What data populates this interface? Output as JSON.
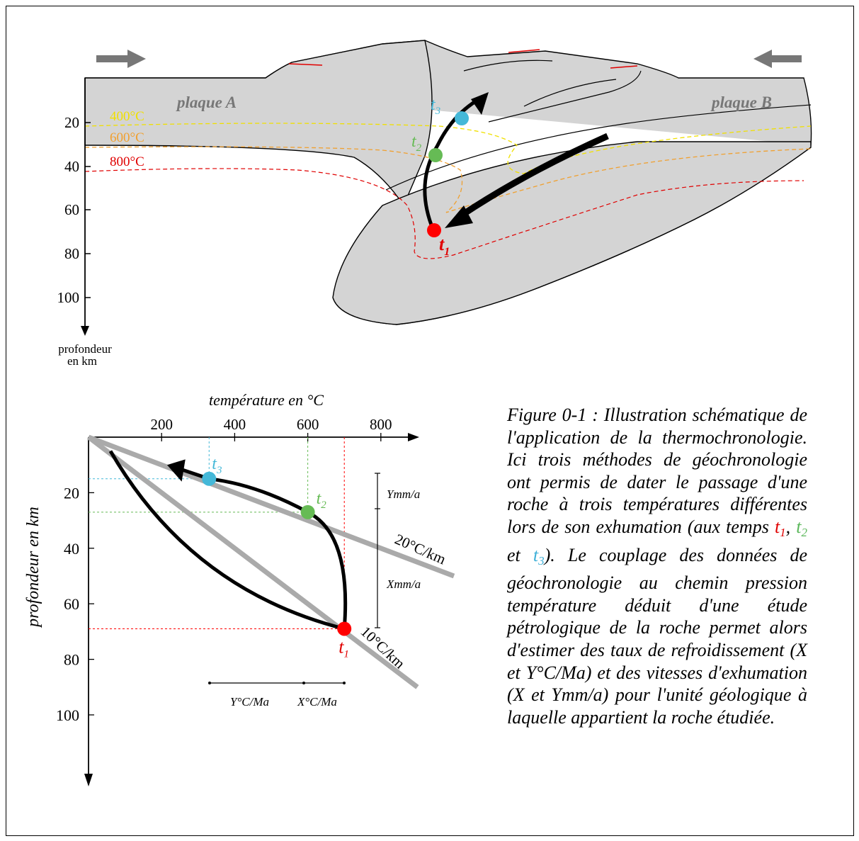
{
  "section_top": {
    "plate_a_label": "plaque A",
    "plate_b_label": "plaque B",
    "isotherms": [
      {
        "label": "400°C",
        "color": "#f0e000"
      },
      {
        "label": "600°C",
        "color": "#f0a030"
      },
      {
        "label": "800°C",
        "color": "#e00000"
      }
    ],
    "depth_ticks": [
      "20",
      "40",
      "60",
      "80",
      "100"
    ],
    "depth_axis_label_line1": "profondeur",
    "depth_axis_label_line2": "en km",
    "points": [
      {
        "t": "t",
        "sub": "1",
        "color": "#ff0000"
      },
      {
        "t": "t",
        "sub": "2",
        "color": "#66bb55"
      },
      {
        "t": "t",
        "sub": "3",
        "color": "#44b8d8"
      }
    ]
  },
  "chart": {
    "x_title": "température en °C",
    "y_title": "profondeur en km",
    "x_ticks": [
      "200",
      "400",
      "600",
      "800"
    ],
    "y_ticks": [
      "20",
      "40",
      "60",
      "80",
      "100"
    ],
    "gradient_labels": [
      "20°C/km",
      "10°C/km"
    ],
    "rate_labels": {
      "ymm": "Ymm/a",
      "xmm": "Xmm/a",
      "yc": "Y°C/Ma",
      "xc": "X°C/Ma"
    }
  },
  "chart_data": {
    "type": "scatter",
    "xlabel": "température en °C",
    "ylabel": "profondeur en km",
    "xlim": [
      0,
      900
    ],
    "ylim": [
      0,
      120
    ],
    "x_ticks": [
      200,
      400,
      600,
      800
    ],
    "y_ticks": [
      20,
      40,
      60,
      80,
      100
    ],
    "points": [
      {
        "name": "t1",
        "x": 700,
        "y": 69,
        "color": "#ff0000"
      },
      {
        "name": "t2",
        "x": 600,
        "y": 27,
        "color": "#66bb55"
      },
      {
        "name": "t3",
        "x": 330,
        "y": 15,
        "color": "#44b8d8"
      }
    ],
    "gradients": [
      {
        "label": "20°C/km",
        "x": [
          0,
          1000
        ],
        "y": [
          0,
          50
        ]
      },
      {
        "label": "10°C/km",
        "x": [
          0,
          900
        ],
        "y": [
          0,
          90
        ]
      }
    ]
  },
  "caption": {
    "figure_label": "Figure 0-1 : Illustration schématique de l'application de la thermochronologie. Ici trois méthodes de géochronologie ont permis de dater le passage d'une roche à trois températures différentes lors de son exhumation (aux temps",
    "t": "t",
    "sub1": "1",
    "sub2": "2",
    "sub3": "3",
    "comma": ",",
    "et": " et ",
    "tail": "). Le couplage des données de géochronologie au chemin pression température déduit d'une étude pétrologique de la roche permet alors d'estimer des taux de refroidissement (X et Y°C/Ma) et des vitesses d'exhumation (X et Ymm/a) pour l'unité géologique à laquelle appartient la roche étudiée."
  }
}
